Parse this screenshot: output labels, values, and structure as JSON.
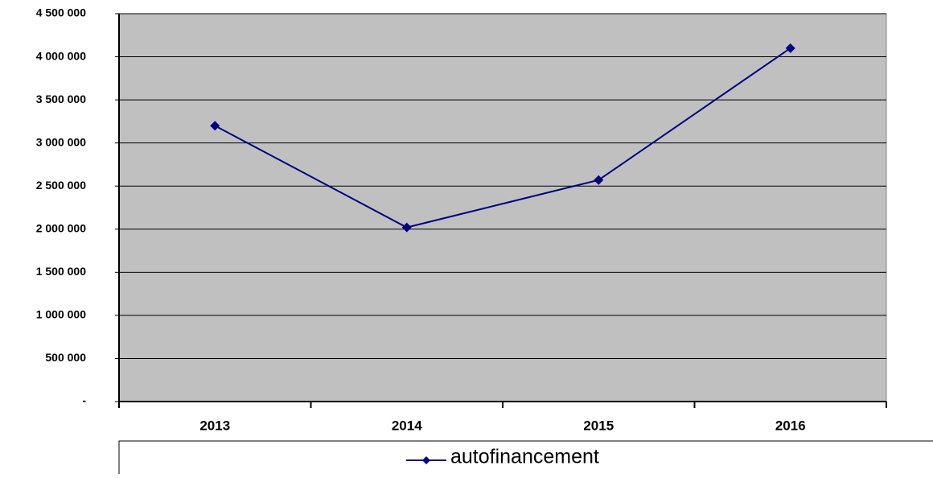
{
  "chart_data": {
    "type": "line",
    "categories": [
      "2013",
      "2014",
      "2015",
      "2016"
    ],
    "series": [
      {
        "name": "autofinancement",
        "color": "#000080",
        "values": [
          3200000,
          2020000,
          2570000,
          4100000
        ]
      }
    ],
    "ylim": [
      0,
      4500000
    ],
    "yticks": [
      {
        "value": 0,
        "label": "-"
      },
      {
        "value": 500000,
        "label": "500 000"
      },
      {
        "value": 1000000,
        "label": "1 000 000"
      },
      {
        "value": 1500000,
        "label": "1 500 000"
      },
      {
        "value": 2000000,
        "label": "2 000 000"
      },
      {
        "value": 2500000,
        "label": "2 500 000"
      },
      {
        "value": 3000000,
        "label": "3 000 000"
      },
      {
        "value": 3500000,
        "label": "3 500 000"
      },
      {
        "value": 4000000,
        "label": "4 000 000"
      },
      {
        "value": 4500000,
        "label": "4 500 000"
      }
    ],
    "grid": true,
    "plot_background": "#c0c0c0",
    "legend": "bottom"
  }
}
